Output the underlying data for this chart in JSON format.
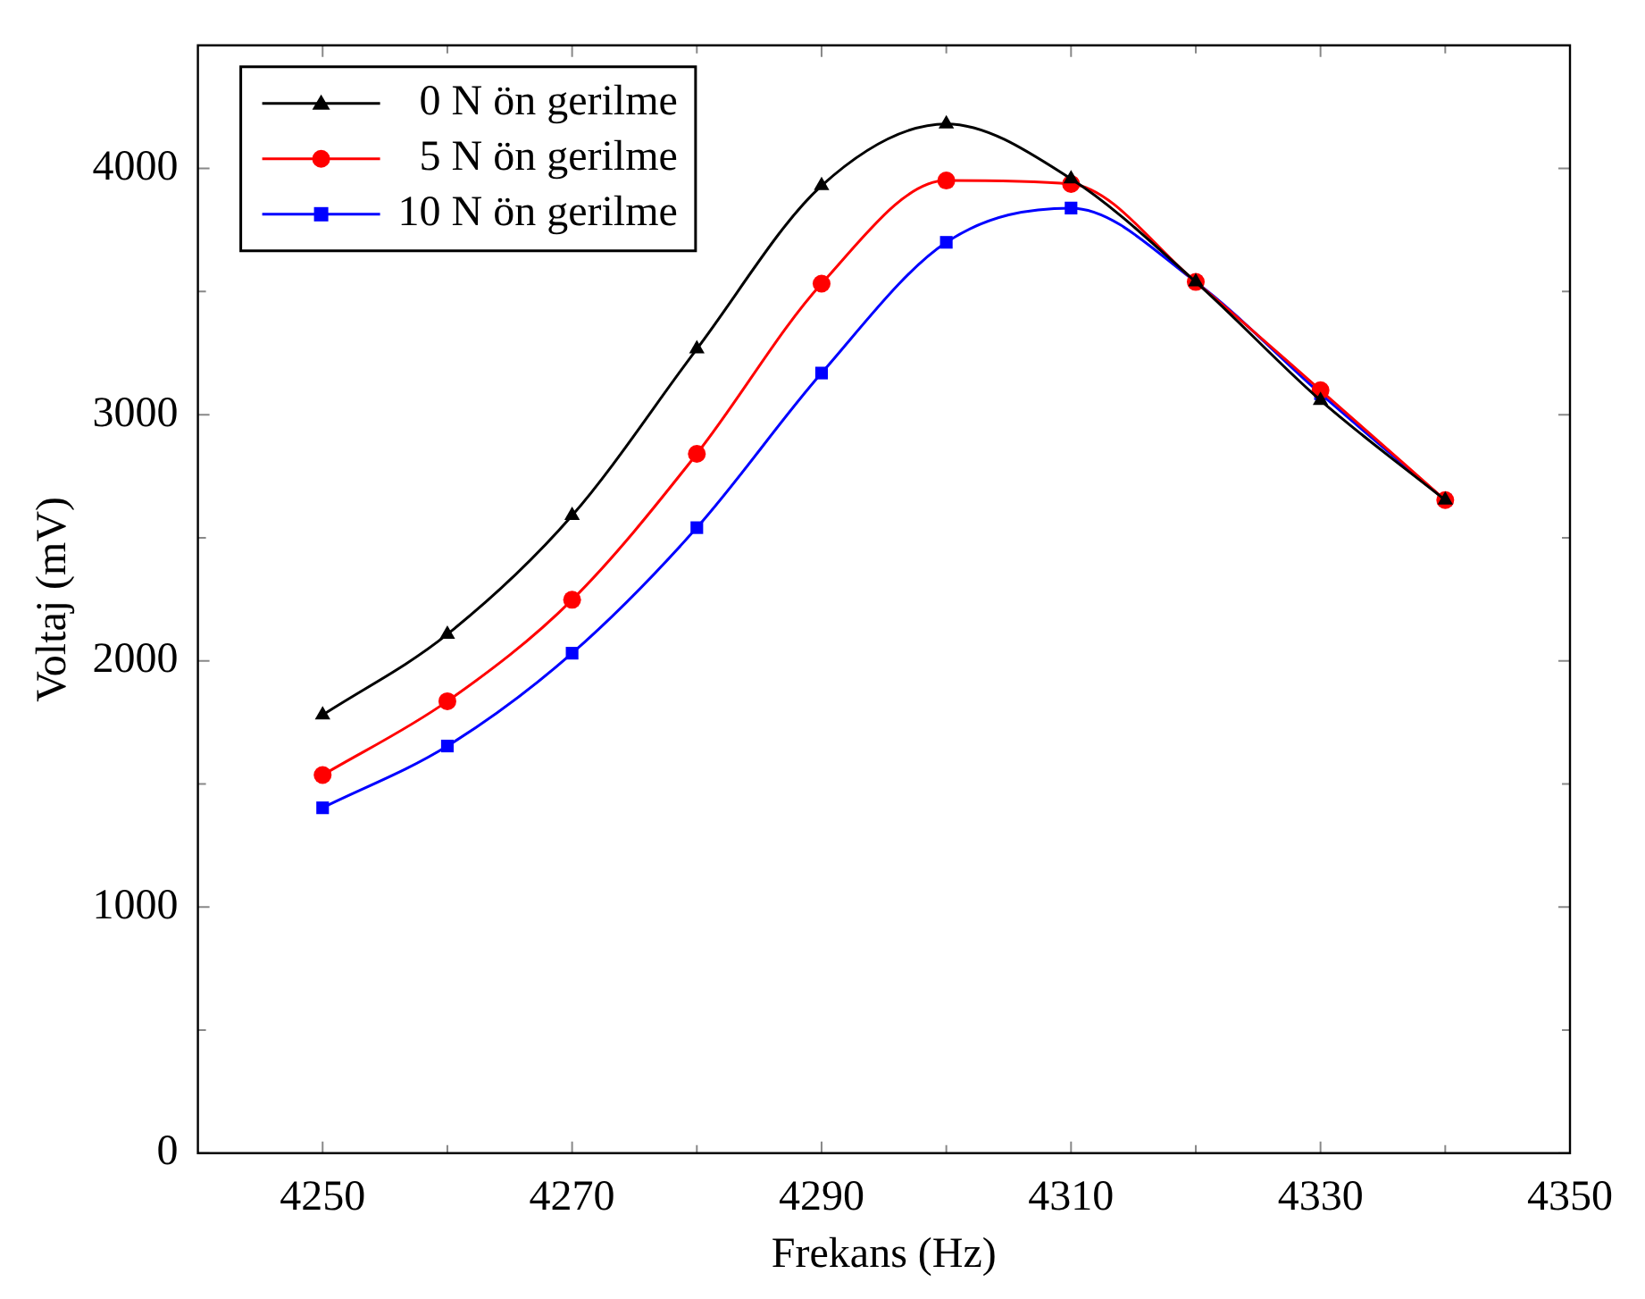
{
  "chart_data": {
    "type": "line",
    "xlabel": "Frekans (Hz)",
    "ylabel": "Voltaj (mV)",
    "x": [
      4250,
      4260,
      4270,
      4280,
      4290,
      4300,
      4310,
      4320,
      4330,
      4340
    ],
    "series": [
      {
        "name": "0 N ön gerilme",
        "color": "#000000",
        "marker": "triangle",
        "values": [
          1780,
          2108,
          2590,
          3267,
          3930,
          4181,
          3958,
          3539,
          3058,
          2653
        ]
      },
      {
        "name": "5 N ön gerilme",
        "color": "#ff0000",
        "marker": "circle",
        "values": [
          1536,
          1836,
          2248,
          2841,
          3532,
          3951,
          3937,
          3539,
          3099,
          2653
        ]
      },
      {
        "name": "10 N ön gerilme",
        "color": "#0000ff",
        "marker": "square",
        "values": [
          1403,
          1654,
          2031,
          2541,
          3169,
          3700,
          3839,
          3539,
          3085,
          2653
        ]
      }
    ],
    "xlim": [
      4240,
      4350
    ],
    "xticks": [
      4250,
      {
        "value": 4260,
        "label": null
      },
      4270,
      {
        "value": 4280,
        "label": null
      },
      4290,
      {
        "value": 4300,
        "label": null
      },
      4310,
      {
        "value": 4320,
        "label": null
      },
      4330,
      {
        "value": 4340,
        "label": null
      },
      4350
    ],
    "ylim": [
      0,
      4500
    ],
    "yticks": [
      0,
      {
        "value": 500,
        "label": null
      },
      1000,
      {
        "value": 1500,
        "label": null
      },
      2000,
      {
        "value": 2500,
        "label": null
      },
      3000,
      {
        "value": 3500,
        "label": null
      },
      4000
    ],
    "grid": false,
    "legend": "top left"
  }
}
